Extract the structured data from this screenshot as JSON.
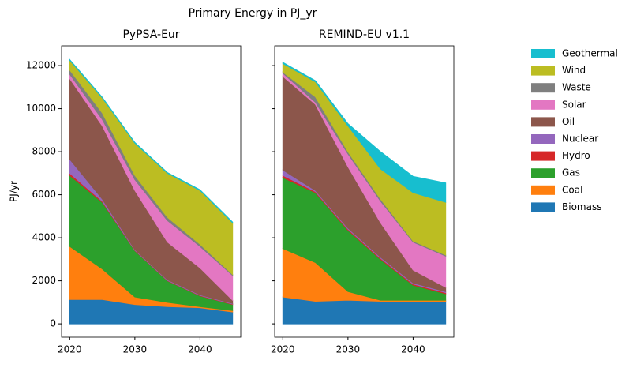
{
  "title": "Primary Energy in PJ_yr",
  "chart_data": [
    {
      "type": "stackedarea",
      "title": "PyPSA-Eur",
      "y_label": "PJ/yr",
      "x": [
        2020,
        2025,
        2030,
        2035,
        2040,
        2045
      ],
      "xlim": [
        2018.75,
        2046.25
      ],
      "xticks": [
        2020,
        2030,
        2040
      ],
      "ylim": [
        -620,
        12920
      ],
      "yticks": [
        0,
        2000,
        4000,
        6000,
        8000,
        10000,
        12000
      ],
      "series": [
        {
          "name": "Biomass",
          "color": "#1f77b4",
          "values": [
            1130,
            1130,
            900,
            800,
            750,
            550
          ]
        },
        {
          "name": "Coal",
          "color": "#ff7f0e",
          "values": [
            2470,
            1420,
            350,
            200,
            50,
            70
          ]
        },
        {
          "name": "Gas",
          "color": "#2ca02c",
          "values": [
            3300,
            3100,
            2150,
            1000,
            500,
            280
          ]
        },
        {
          "name": "Hydro",
          "color": "#d62728",
          "values": [
            100,
            50,
            20,
            20,
            20,
            20
          ]
        },
        {
          "name": "Nuclear",
          "color": "#9467bd",
          "values": [
            650,
            100,
            30,
            30,
            30,
            30
          ]
        },
        {
          "name": "Oil",
          "color": "#8c564b",
          "values": [
            3750,
            3400,
            2750,
            1750,
            1250,
            150
          ]
        },
        {
          "name": "Solar",
          "color": "#e377c2",
          "values": [
            200,
            300,
            500,
            1000,
            1000,
            1150
          ]
        },
        {
          "name": "Waste",
          "color": "#7f7f7f",
          "values": [
            200,
            300,
            200,
            150,
            100,
            50
          ]
        },
        {
          "name": "Wind",
          "color": "#bcbd22",
          "values": [
            450,
            700,
            1500,
            2050,
            2500,
            2400
          ]
        },
        {
          "name": "Geothermal",
          "color": "#17becf",
          "values": [
            30,
            30,
            30,
            30,
            30,
            30
          ]
        }
      ]
    },
    {
      "type": "stackedarea",
      "title": "REMIND-EU v1.1",
      "x": [
        2020,
        2025,
        2030,
        2035,
        2040,
        2045
      ],
      "xlim": [
        2018.75,
        2046.25
      ],
      "xticks": [
        2020,
        2030,
        2040
      ],
      "ylim": [
        -620,
        12920
      ],
      "yticks": [
        0,
        2000,
        4000,
        6000,
        8000,
        10000,
        12000
      ],
      "series": [
        {
          "name": "Biomass",
          "color": "#1f77b4",
          "values": [
            1250,
            1050,
            1100,
            1050,
            1050,
            1050
          ]
        },
        {
          "name": "Coal",
          "color": "#ff7f0e",
          "values": [
            2250,
            1800,
            400,
            50,
            50,
            50
          ]
        },
        {
          "name": "Gas",
          "color": "#2ca02c",
          "values": [
            3300,
            3250,
            2850,
            1900,
            700,
            300
          ]
        },
        {
          "name": "Hydro",
          "color": "#d62728",
          "values": [
            100,
            50,
            50,
            50,
            50,
            50
          ]
        },
        {
          "name": "Nuclear",
          "color": "#9467bd",
          "values": [
            250,
            50,
            50,
            50,
            50,
            50
          ]
        },
        {
          "name": "Oil",
          "color": "#8c564b",
          "values": [
            4350,
            4000,
            2850,
            1600,
            600,
            200
          ]
        },
        {
          "name": "Solar",
          "color": "#e377c2",
          "values": [
            150,
            100,
            600,
            1000,
            1300,
            1450
          ]
        },
        {
          "name": "Waste",
          "color": "#7f7f7f",
          "values": [
            50,
            250,
            100,
            100,
            50,
            50
          ]
        },
        {
          "name": "Wind",
          "color": "#bcbd22",
          "values": [
            400,
            700,
            1200,
            1400,
            2250,
            2450
          ]
        },
        {
          "name": "Geothermal",
          "color": "#17becf",
          "values": [
            50,
            50,
            100,
            800,
            750,
            900
          ]
        }
      ]
    }
  ]
}
